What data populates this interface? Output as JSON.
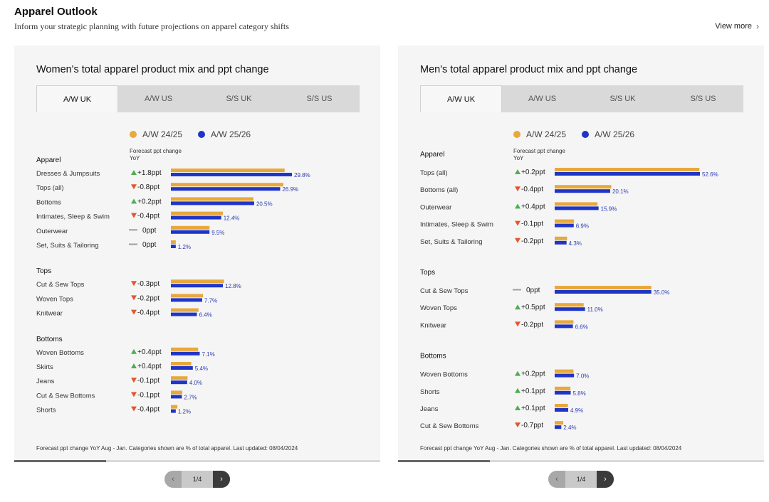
{
  "header": {
    "title": "Apparel Outlook",
    "subtitle": "Inform your strategic planning with future projections on apparel category shifts",
    "view_more": "View more"
  },
  "colors": {
    "prior": "#e8a83a",
    "current": "#1f35c8",
    "up": "#4caf50",
    "down": "#e2572b",
    "flat": "#9e9e9e",
    "value_label": "#2d3bb5"
  },
  "legend": {
    "prior": "A/W 24/25",
    "current": "A/W 25/26"
  },
  "forecast_header": "Forecast ppt change YoY",
  "footnote": "Forecast ppt change YoY Aug - Jan. Categories shown are % of total apparel. Last updated: 08/04/2024",
  "tabs": [
    "A/W UK",
    "A/W US",
    "S/S UK",
    "S/S US"
  ],
  "active_tab": "A/W UK",
  "pager": {
    "label": "1/4"
  },
  "chart_data": [
    {
      "type": "bar",
      "title": "Women's total apparel product mix and ppt change",
      "groups": [
        {
          "name": "Apparel",
          "rows": [
            {
              "category": "Dresses & Jumpsuits",
              "change": "+1.8ppt",
              "dir": "up",
              "prior": 28.0,
              "current": 29.8,
              "label": "29.8%"
            },
            {
              "category": "Tops (all)",
              "change": "-0.8ppt",
              "dir": "down",
              "prior": 27.7,
              "current": 26.9,
              "label": "26.9%"
            },
            {
              "category": "Bottoms",
              "change": "+0.2ppt",
              "dir": "up",
              "prior": 20.3,
              "current": 20.5,
              "label": "20.5%"
            },
            {
              "category": "Intimates, Sleep & Swim",
              "change": "-0.4ppt",
              "dir": "down",
              "prior": 12.8,
              "current": 12.4,
              "label": "12.4%"
            },
            {
              "category": "Outerwear",
              "change": "0ppt",
              "dir": "flat",
              "prior": 9.5,
              "current": 9.5,
              "label": "9.5%"
            },
            {
              "category": "Set, Suits & Tailoring",
              "change": "0ppt",
              "dir": "flat",
              "prior": 1.2,
              "current": 1.2,
              "label": "1.2%"
            }
          ]
        },
        {
          "name": "Tops",
          "rows": [
            {
              "category": "Cut & Sew Tops",
              "change": "-0.3ppt",
              "dir": "down",
              "prior": 13.1,
              "current": 12.8,
              "label": "12.8%"
            },
            {
              "category": "Woven Tops",
              "change": "-0.2ppt",
              "dir": "down",
              "prior": 7.9,
              "current": 7.7,
              "label": "7.7%"
            },
            {
              "category": "Knitwear",
              "change": "-0.4ppt",
              "dir": "down",
              "prior": 6.8,
              "current": 6.4,
              "label": "6.4%"
            }
          ]
        },
        {
          "name": "Bottoms",
          "rows": [
            {
              "category": "Woven Bottoms",
              "change": "+0.4ppt",
              "dir": "up",
              "prior": 6.7,
              "current": 7.1,
              "label": "7.1%"
            },
            {
              "category": "Skirts",
              "change": "+0.4ppt",
              "dir": "up",
              "prior": 5.0,
              "current": 5.4,
              "label": "5.4%"
            },
            {
              "category": "Jeans",
              "change": "-0.1ppt",
              "dir": "down",
              "prior": 4.1,
              "current": 4.0,
              "label": "4.0%"
            },
            {
              "category": "Cut & Sew Bottoms",
              "change": "-0.1ppt",
              "dir": "down",
              "prior": 2.8,
              "current": 2.7,
              "label": "2.7%"
            },
            {
              "category": "Shorts",
              "change": "-0.4ppt",
              "dir": "down",
              "prior": 1.6,
              "current": 1.2,
              "label": "1.2%"
            }
          ]
        }
      ],
      "xlim": [
        0,
        35
      ],
      "footnote": "Forecast ppt change YoY Aug - Jan. Categories shown are % of total apparel. Last updated: 08/04/2024"
    },
    {
      "type": "bar",
      "title": "Men's total apparel product mix and ppt change",
      "groups": [
        {
          "name": "Apparel",
          "rows": [
            {
              "category": "Tops (all)",
              "change": "+0.2ppt",
              "dir": "up",
              "prior": 52.4,
              "current": 52.6,
              "label": "52.6%"
            },
            {
              "category": "Bottoms (all)",
              "change": "-0.4ppt",
              "dir": "down",
              "prior": 20.5,
              "current": 20.1,
              "label": "20.1%"
            },
            {
              "category": "Outerwear",
              "change": "+0.4ppt",
              "dir": "up",
              "prior": 15.5,
              "current": 15.9,
              "label": "15.9%"
            },
            {
              "category": "Intimates, Sleep & Swim",
              "change": "-0.1ppt",
              "dir": "down",
              "prior": 7.0,
              "current": 6.9,
              "label": "6.9%"
            },
            {
              "category": "Set, Suits & Tailoring",
              "change": "-0.2ppt",
              "dir": "down",
              "prior": 4.5,
              "current": 4.3,
              "label": "4.3%"
            }
          ]
        },
        {
          "name": "Tops",
          "rows": [
            {
              "category": "Cut & Sew Tops",
              "change": "0ppt",
              "dir": "flat",
              "prior": 35.0,
              "current": 35.0,
              "label": "35.0%"
            },
            {
              "category": "Woven Tops",
              "change": "+0.5ppt",
              "dir": "up",
              "prior": 10.5,
              "current": 11.0,
              "label": "11.0%"
            },
            {
              "category": "Knitwear",
              "change": "-0.2ppt",
              "dir": "down",
              "prior": 6.8,
              "current": 6.6,
              "label": "6.6%"
            }
          ]
        },
        {
          "name": "Bottoms",
          "rows": [
            {
              "category": "Woven Bottoms",
              "change": "+0.2ppt",
              "dir": "up",
              "prior": 6.8,
              "current": 7.0,
              "label": "7.0%"
            },
            {
              "category": "Shorts",
              "change": "+0.1ppt",
              "dir": "up",
              "prior": 5.7,
              "current": 5.8,
              "label": "5.8%"
            },
            {
              "category": "Jeans",
              "change": "+0.1ppt",
              "dir": "up",
              "prior": 4.8,
              "current": 4.9,
              "label": "4.9%"
            },
            {
              "category": "Cut & Sew Bottoms",
              "change": "-0.7ppt",
              "dir": "down",
              "prior": 3.1,
              "current": 2.4,
              "label": "2.4%"
            }
          ]
        }
      ],
      "xlim": [
        0,
        60
      ],
      "footnote": "Forecast ppt change YoY Aug - Jan. Categories shown are % of total apparel. Last updated: 08/04/2024"
    }
  ],
  "progress": [
    0.25,
    0.25
  ]
}
